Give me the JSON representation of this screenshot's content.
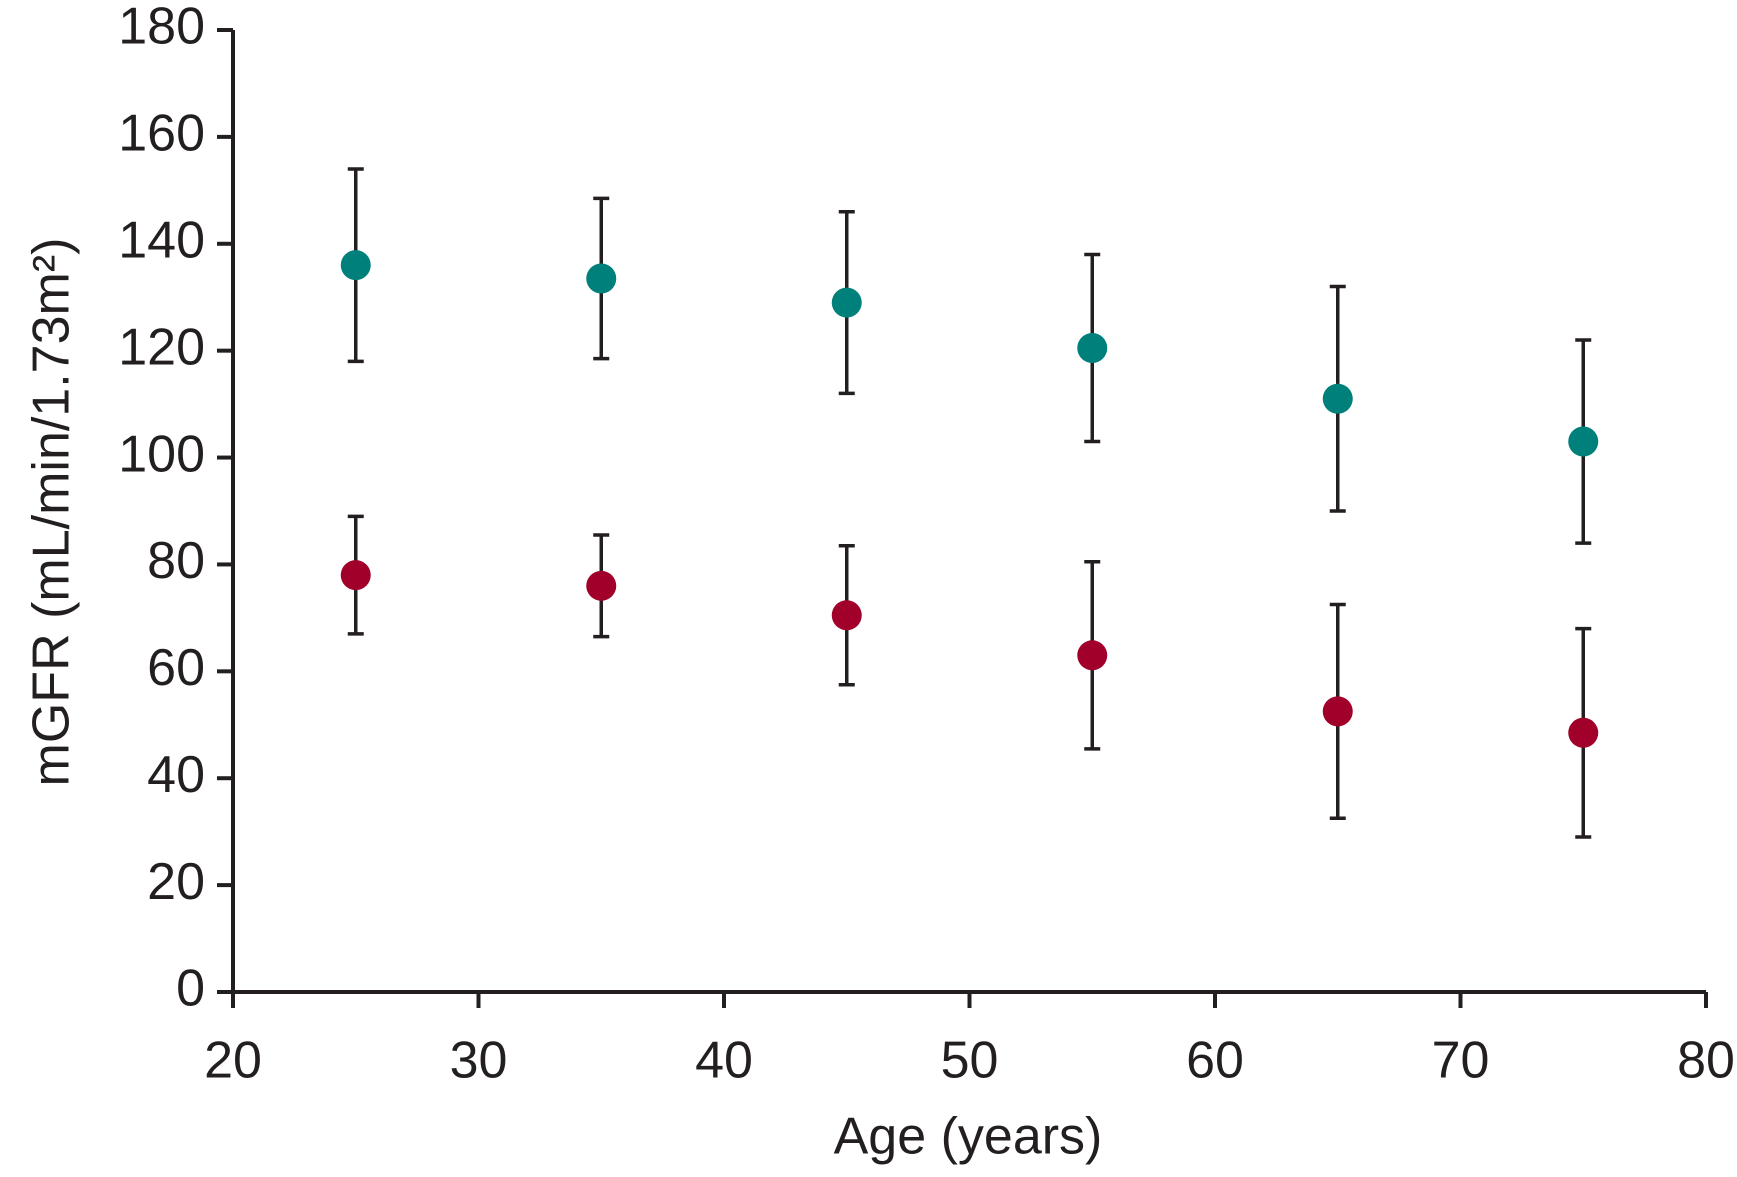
{
  "chart_data": {
    "type": "scatter",
    "x_label": "Age (years)",
    "y_label": "mGFR (mL/min/1.73m²)",
    "x": [
      25,
      35,
      45,
      55,
      65,
      75
    ],
    "series": [
      {
        "color": "#00807a",
        "values": [
          136,
          133.5,
          129,
          120.5,
          111,
          103
        ],
        "errors": [
          18,
          15,
          17,
          17.5,
          21,
          19
        ]
      },
      {
        "color": "#a0002a",
        "values": [
          78,
          76,
          70.5,
          63,
          52.5,
          48.5
        ],
        "errors": [
          11,
          9.5,
          13,
          17.5,
          20,
          19.5
        ]
      }
    ],
    "xlim": [
      20,
      80
    ],
    "xticks": [
      20,
      30,
      40,
      50,
      60,
      70,
      80
    ],
    "ylim": [
      0,
      180
    ],
    "yticks": [
      0,
      20,
      40,
      60,
      80,
      100,
      120,
      140,
      160,
      180
    ],
    "axis_color": "#231f20",
    "errorbar_color": "#231f20"
  }
}
